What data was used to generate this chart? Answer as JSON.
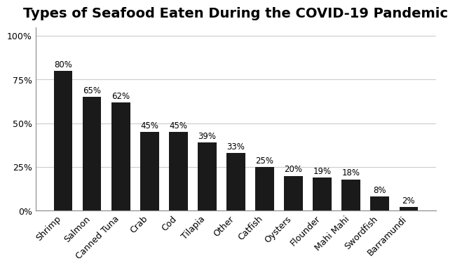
{
  "title": "Types of Seafood Eaten During the COVID-19 Pandemic",
  "categories": [
    "Shrimp",
    "Salmon",
    "Canned Tuna",
    "Crab",
    "Cod",
    "Tilapia",
    "Other",
    "Catfish",
    "Oysters",
    "Flounder",
    "Mahi Mahi",
    "Swordfish",
    "Barramundi"
  ],
  "values": [
    80,
    65,
    62,
    45,
    45,
    39,
    33,
    25,
    20,
    19,
    18,
    8,
    2
  ],
  "bar_color": "#1a1a1a",
  "ylabel_ticks": [
    0,
    25,
    50,
    75,
    100
  ],
  "ylabel_labels": [
    "0%",
    "25%",
    "50%",
    "75%",
    "100%"
  ],
  "ylim": [
    0,
    105
  ],
  "title_fontsize": 14,
  "label_fontsize": 9,
  "annotation_fontsize": 8.5,
  "background_color": "#ffffff",
  "border_color": "#aaaaaa"
}
